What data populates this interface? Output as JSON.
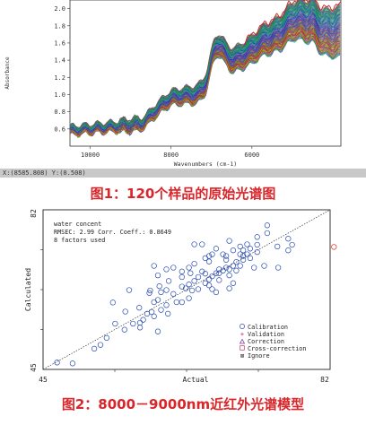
{
  "chart_data": [
    {
      "type": "line",
      "title": "",
      "xlabel": "Wavenumbers (cm-1)",
      "ylabel": "Absorbance",
      "xlim": [
        10500,
        3800
      ],
      "ylim": [
        0.4,
        2.1
      ],
      "x_ticks": [
        10000,
        8000,
        6000
      ],
      "y_ticks": [
        "2.0",
        "1.8",
        "1.6",
        "1.4",
        "1.2",
        "1.0",
        "0.8",
        "0.6"
      ],
      "series_count": 120,
      "series_colors": [
        "#1f3f9f",
        "#2b8a2b",
        "#b02020",
        "#7a2b9a",
        "#1a8f9a",
        "#c8a800",
        "#2040d0",
        "#20a040",
        "#d04090",
        "#6060c0",
        "#008060",
        "#a05020",
        "#3070b0",
        "#50a0d0",
        "#903090",
        "#607020"
      ],
      "highlight_color": "#cc2020",
      "grid": false,
      "status": "X:(8585.808) Y:(0.508)",
      "caption": "图1：120个样品的原始光谱图"
    },
    {
      "type": "scatter",
      "title": "",
      "xlabel": "Actual",
      "ylabel": "Calculated",
      "xlim": [
        45,
        82
      ],
      "ylim": [
        45,
        82
      ],
      "x_ticks": [
        "45",
        "82"
      ],
      "y_ticks": [
        "82",
        "45"
      ],
      "annotation_lines": [
        "water concent",
        "RMSEC:  2.99  Corr. Coeff.: 0.8649",
        "8 factors used"
      ],
      "legend": [
        "Calibration",
        "Validation",
        "Correction",
        "Cross-correction",
        "Ignore"
      ],
      "legend_position": "bottom-right",
      "points": [
        [
          46.8,
          46.6
        ],
        [
          48.8,
          46.4
        ],
        [
          51.6,
          49.8
        ],
        [
          53.2,
          52.3
        ],
        [
          55.5,
          54.2
        ],
        [
          52.4,
          50.7
        ],
        [
          54.3,
          55.6
        ],
        [
          57.5,
          55.8
        ],
        [
          54.0,
          60.5
        ],
        [
          59.0,
          58.3
        ],
        [
          57.4,
          59.3
        ],
        [
          59.3,
          60.6
        ],
        [
          60.9,
          59.9
        ],
        [
          59.8,
          61.1
        ],
        [
          62.2,
          60.6
        ],
        [
          60.2,
          62.9
        ],
        [
          61.8,
          62.5
        ],
        [
          60.9,
          63.4
        ],
        [
          63.4,
          63.8
        ],
        [
          62.9,
          64.2
        ],
        [
          64.2,
          63.3
        ],
        [
          63.8,
          64.7
        ],
        [
          65.0,
          63.6
        ],
        [
          64.5,
          65.5
        ],
        [
          65.9,
          65.0
        ],
        [
          65.0,
          66.4
        ],
        [
          66.4,
          65.9
        ],
        [
          65.9,
          67.2
        ],
        [
          66.8,
          66.6
        ],
        [
          67.3,
          67.3
        ],
        [
          67.7,
          65.7
        ],
        [
          67.7,
          68.2
        ],
        [
          68.2,
          67.9
        ],
        [
          68.6,
          68.6
        ],
        [
          69.0,
          66.8
        ],
        [
          69.0,
          68.2
        ],
        [
          69.5,
          69.0
        ],
        [
          69.9,
          67.9
        ],
        [
          69.9,
          69.9
        ],
        [
          70.4,
          69.0
        ],
        [
          70.8,
          70.4
        ],
        [
          71.3,
          71.7
        ],
        [
          71.7,
          70.8
        ],
        [
          72.2,
          68.6
        ],
        [
          72.6,
          72.2
        ],
        [
          70.8,
          72.6
        ],
        [
          70.4,
          73.5
        ],
        [
          71.3,
          74.0
        ],
        [
          72.6,
          73.9
        ],
        [
          67.3,
          73.0
        ],
        [
          66.8,
          71.7
        ],
        [
          65.9,
          70.8
        ],
        [
          64.5,
          69.5
        ],
        [
          63.8,
          68.6
        ],
        [
          62.9,
          67.7
        ],
        [
          61.8,
          68.6
        ],
        [
          60.9,
          68.2
        ],
        [
          59.8,
          66.8
        ],
        [
          64.5,
          74.0
        ],
        [
          65.5,
          74.0
        ],
        [
          66.4,
          71.3
        ],
        [
          68.6,
          71.3
        ],
        [
          69.5,
          72.6
        ],
        [
          72.6,
          75.7
        ],
        [
          73.9,
          76.6
        ],
        [
          75.2,
          73.5
        ],
        [
          76.6,
          72.6
        ],
        [
          76.6,
          75.3
        ],
        [
          77.1,
          73.9
        ],
        [
          66.4,
          64.5
        ],
        [
          66.8,
          63.6
        ],
        [
          63.8,
          61.5
        ],
        [
          62.9,
          60.6
        ],
        [
          61.1,
          57.9
        ],
        [
          60.2,
          58.8
        ],
        [
          59.3,
          57.3
        ],
        [
          58.4,
          57.9
        ],
        [
          59.8,
          53.8
        ],
        [
          57.9,
          56.5
        ],
        [
          57.5,
          54.7
        ],
        [
          55.6,
          58.4
        ],
        [
          56.6,
          55.6
        ],
        [
          58.8,
          63.3
        ],
        [
          60.0,
          64.3
        ],
        [
          58.7,
          62.7
        ],
        [
          56.1,
          63.4
        ],
        [
          59.3,
          69.0
        ],
        [
          62.9,
          66.4
        ],
        [
          67.3,
          62.9
        ],
        [
          69.0,
          63.8
        ],
        [
          69.5,
          65.0
        ],
        [
          73.5,
          69.0
        ],
        [
          75.3,
          68.6
        ],
        [
          73.9,
          78.4
        ],
        [
          68.2,
          71.7
        ],
        [
          69.0,
          74.8
        ],
        [
          66.4,
          70.0
        ],
        [
          61.2,
          65.5
        ],
        [
          64.0,
          67.3
        ],
        [
          65.5,
          67.7
        ],
        [
          67.7,
          67.3
        ],
        [
          70.8,
          71.3
        ],
        [
          71.7,
          73.0
        ],
        [
          68.6,
          70.4
        ],
        [
          70.4,
          71.7
        ]
      ],
      "outlier": [
        82.5,
        73.4
      ],
      "outlier_color": "#e04030",
      "point_color": "#2a4cb0",
      "caption": "图2：8000－9000nm近红外光谱模型"
    }
  ]
}
